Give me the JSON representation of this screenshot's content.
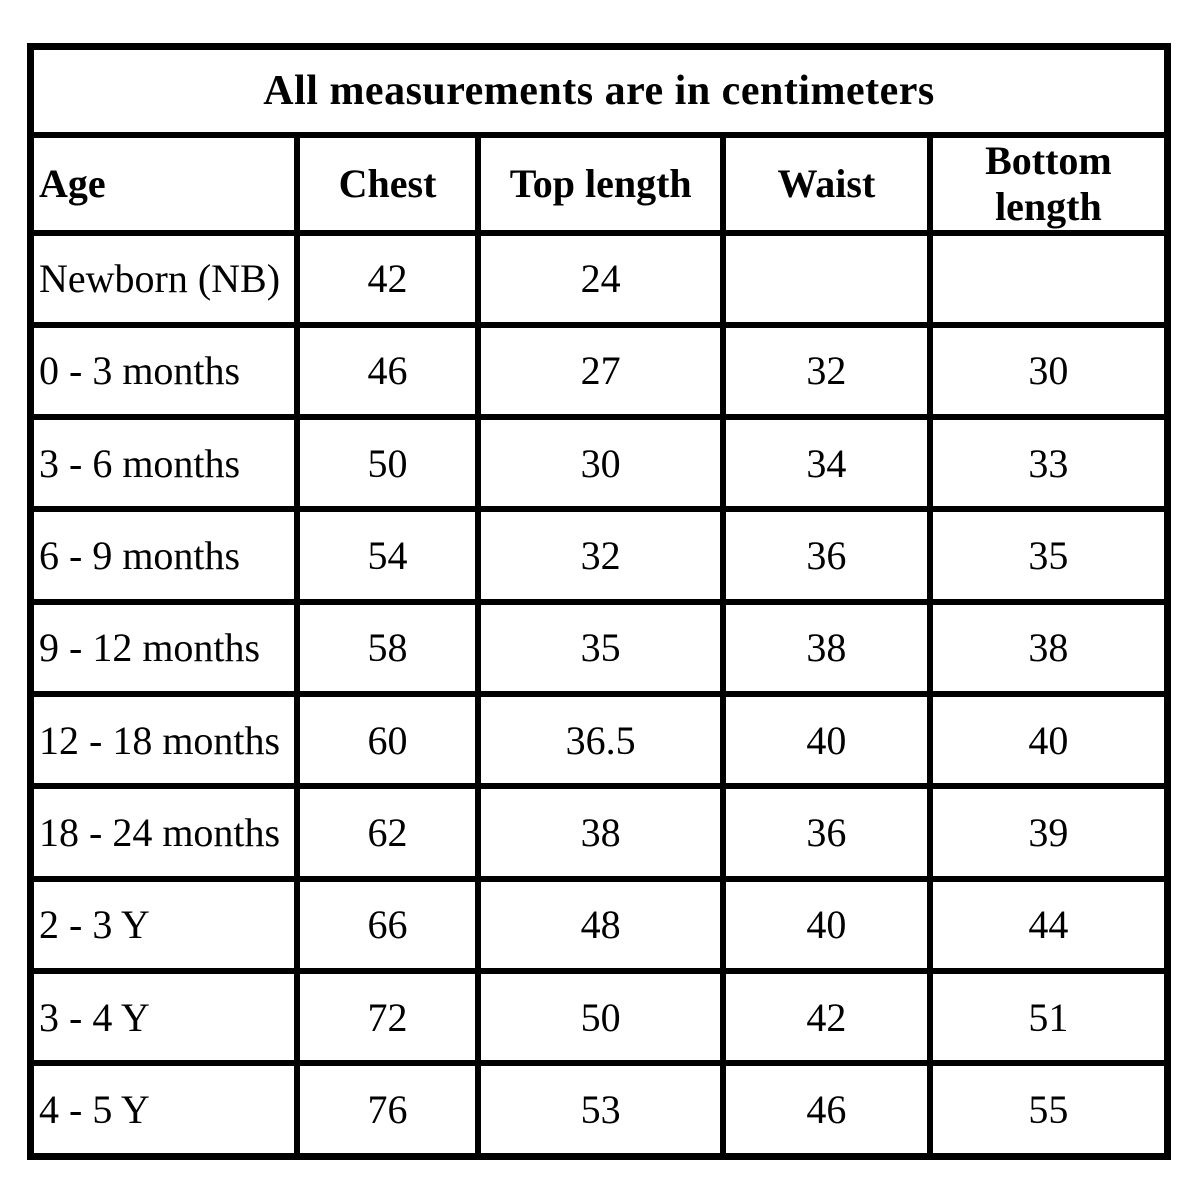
{
  "chart_data": {
    "type": "table",
    "title": "All measurements are in centimeters",
    "columns": [
      "Age",
      "Chest",
      "Top length",
      "Waist",
      "Bottom length"
    ],
    "rows": [
      [
        "Newborn (NB)",
        42,
        24,
        null,
        null
      ],
      [
        "0 - 3 months",
        46,
        27,
        32,
        30
      ],
      [
        "3 - 6 months",
        50,
        30,
        34,
        33
      ],
      [
        "6 - 9 months",
        54,
        32,
        36,
        35
      ],
      [
        "9 - 12 months",
        58,
        35,
        38,
        38
      ],
      [
        "12 - 18 months",
        60,
        36.5,
        40,
        40
      ],
      [
        "18 - 24 months",
        62,
        38,
        36,
        39
      ],
      [
        "2 - 3 Y",
        66,
        48,
        40,
        44
      ],
      [
        "3 - 4 Y",
        72,
        50,
        42,
        51
      ],
      [
        "4 - 5 Y",
        76,
        53,
        46,
        55
      ]
    ],
    "layout": {
      "border_color": "#000000",
      "text_color": "#000000",
      "background": "#ffffff",
      "column_width_pct": [
        23.4,
        16.0,
        21.5,
        18.2,
        20.9
      ]
    }
  }
}
